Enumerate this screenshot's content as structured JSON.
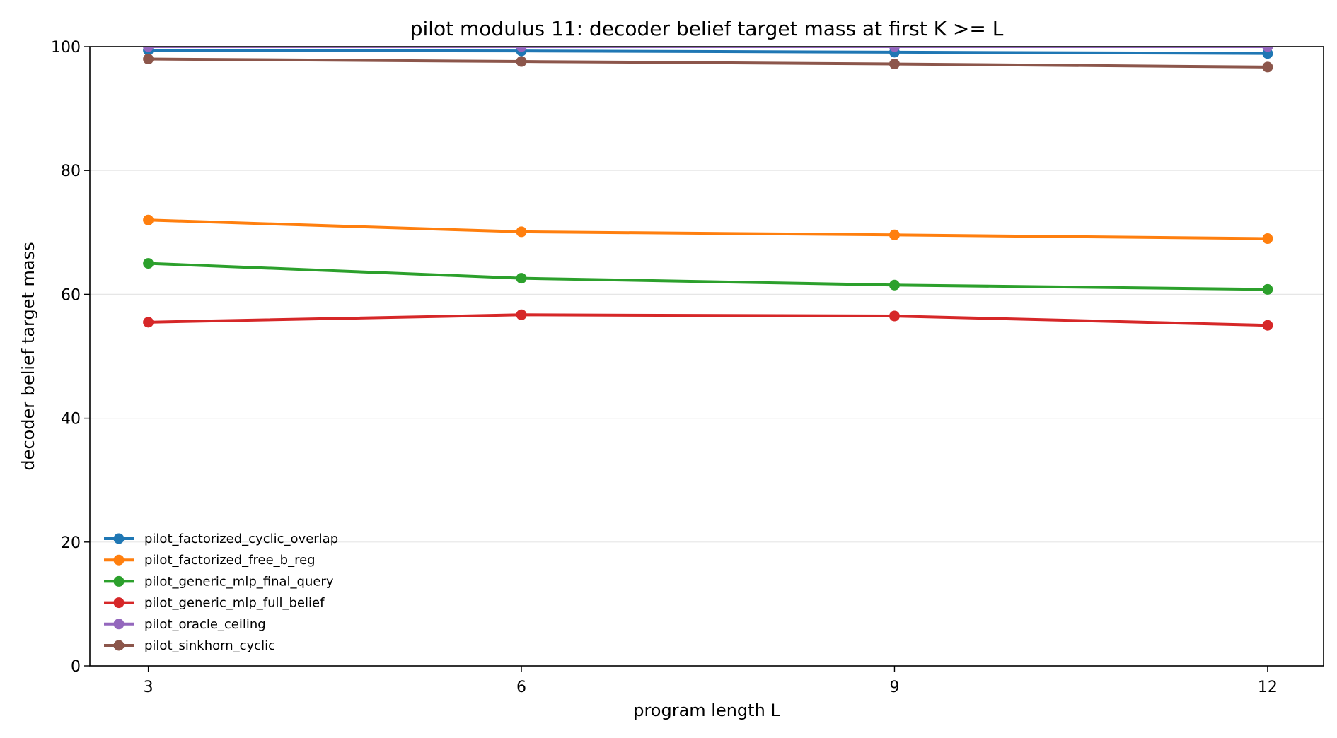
{
  "chart_data": {
    "type": "line",
    "title": "pilot modulus 11: decoder belief target mass at first K >= L",
    "xlabel": "program length L",
    "ylabel": "decoder belief target mass",
    "x": [
      3,
      6,
      9,
      12
    ],
    "x_ticks": [
      "3",
      "6",
      "9",
      "12"
    ],
    "xlim": [
      2.53,
      12.45
    ],
    "ylim": [
      0,
      100
    ],
    "y_ticks": [
      "0",
      "20",
      "40",
      "60",
      "80",
      "100"
    ],
    "y_tick_values": [
      0,
      20,
      40,
      60,
      80,
      100
    ],
    "grid": "horizontal",
    "legend_position": "lower-left",
    "series": [
      {
        "name": "pilot_factorized_cyclic_overlap",
        "color": "#1f77b4",
        "values": [
          99.4,
          99.3,
          99.1,
          98.9
        ]
      },
      {
        "name": "pilot_factorized_free_b_reg",
        "color": "#ff7f0e",
        "values": [
          72.0,
          70.1,
          69.6,
          69.0
        ]
      },
      {
        "name": "pilot_generic_mlp_final_query",
        "color": "#2ca02c",
        "values": [
          65.0,
          62.6,
          61.5,
          60.8
        ]
      },
      {
        "name": "pilot_generic_mlp_full_belief",
        "color": "#d62728",
        "values": [
          55.5,
          56.7,
          56.5,
          55.0
        ]
      },
      {
        "name": "pilot_oracle_ceiling",
        "color": "#9467bd",
        "values": [
          100.0,
          100.0,
          100.0,
          100.0
        ]
      },
      {
        "name": "pilot_sinkhorn_cyclic",
        "color": "#8c564b",
        "values": [
          98.0,
          97.6,
          97.2,
          96.7
        ]
      }
    ]
  }
}
